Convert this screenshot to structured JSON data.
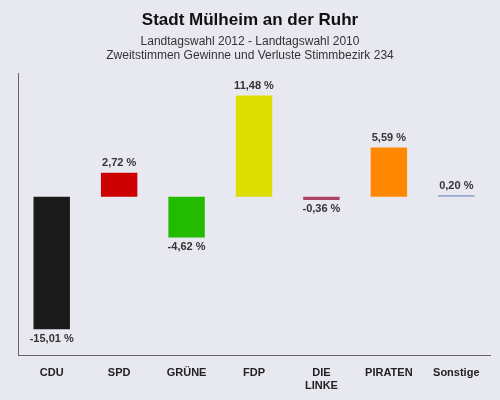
{
  "chart_data": {
    "type": "bar",
    "title": "Stadt Mülheim an der Ruhr",
    "subtitle": [
      "Landtagswahl 2012 - Landtagswahl 2010",
      "Zweitstimmen Gewinne und Verluste Stimmbezirk 234"
    ],
    "categories": [
      "CDU",
      "SPD",
      "GRÜNE",
      "FDP",
      "DIE\nLINKE",
      "PIRATEN",
      "Sonstige"
    ],
    "values": [
      -15.01,
      2.72,
      -4.62,
      11.48,
      -0.36,
      5.59,
      0.2
    ],
    "value_labels": [
      "-15,01 %",
      "2,72 %",
      "-4,62 %",
      "11,48 %",
      "-0,36 %",
      "5,59 %",
      "0,20 %"
    ],
    "colors": [
      "#1a1a1a",
      "#cc0000",
      "#22bb00",
      "#dddd00",
      "#aa4466",
      "#ff8800",
      "#99aacc"
    ],
    "ylim": [
      -18,
      14
    ],
    "grid": false,
    "tick_labels": "x"
  }
}
